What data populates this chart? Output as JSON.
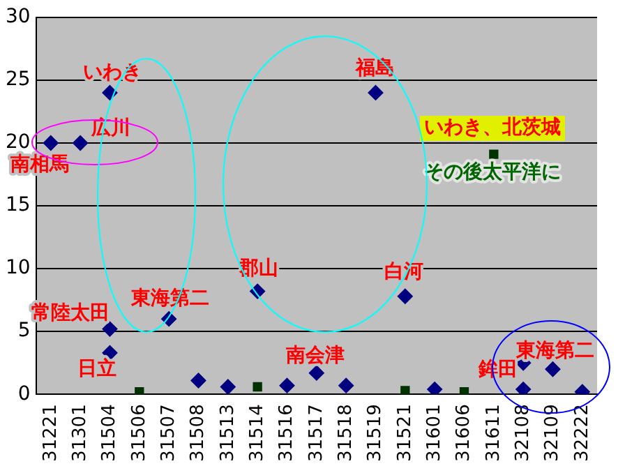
{
  "chart_data": {
    "type": "scatter",
    "categories": [
      "31221",
      "31301",
      "31504",
      "31506",
      "31507",
      "31508",
      "31513",
      "31514",
      "31516",
      "31517",
      "31518",
      "31519",
      "31521",
      "31601",
      "31606",
      "31611",
      "32108",
      "32109",
      "32222"
    ],
    "series": [
      {
        "color": "#000080",
        "marker": "diamond",
        "x": [
          "31221",
          "31301",
          "31504",
          "31504",
          "31504",
          "31507",
          "31508",
          "31513",
          "31514",
          "31516",
          "31517",
          "31518",
          "31519",
          "31521",
          "31601",
          "32108",
          "32108",
          "32109",
          "32222"
        ],
        "values": [
          20,
          20,
          24,
          5.2,
          3.3,
          6.0,
          1.1,
          0.6,
          8.2,
          0.7,
          1.7,
          0.7,
          24,
          7.8,
          0.4,
          2.5,
          0.4,
          2.0,
          0.2
        ]
      },
      {
        "color": "#003300",
        "marker": "square",
        "x": [
          "31506",
          "31514",
          "31521",
          "31606",
          "31611"
        ],
        "values": [
          0.2,
          0.6,
          0.3,
          0.2,
          19.1
        ]
      }
    ],
    "ylim": [
      0,
      30
    ],
    "yticks": [
      0,
      5,
      10,
      15,
      20,
      25,
      30
    ],
    "grid": "y",
    "legend": false,
    "annotations": [
      {
        "text": "いわき",
        "x": "31504",
        "y": 24
      },
      {
        "text": "南相馬",
        "x": "31221",
        "y": 20
      },
      {
        "text": "広川",
        "x": "31301",
        "y": 20
      },
      {
        "text": "常陸太田",
        "x": "31504",
        "y": 5.2
      },
      {
        "text": "日立",
        "x": "31504",
        "y": 3.3
      },
      {
        "text": "東海第二",
        "x": "31507",
        "y": 6.0
      },
      {
        "text": "郡山",
        "x": "31514",
        "y": 8.2
      },
      {
        "text": "南会津",
        "x": "31517",
        "y": 1.7
      },
      {
        "text": "福島",
        "x": "31519",
        "y": 24
      },
      {
        "text": "白河",
        "x": "31521",
        "y": 7.8
      },
      {
        "text": "鉾田",
        "x": "32108",
        "y": 2.5
      },
      {
        "text": "東海第二",
        "x": "32109",
        "y": 2.0
      },
      "いわき、北茨城",
      "その後太平洋に"
    ]
  }
}
